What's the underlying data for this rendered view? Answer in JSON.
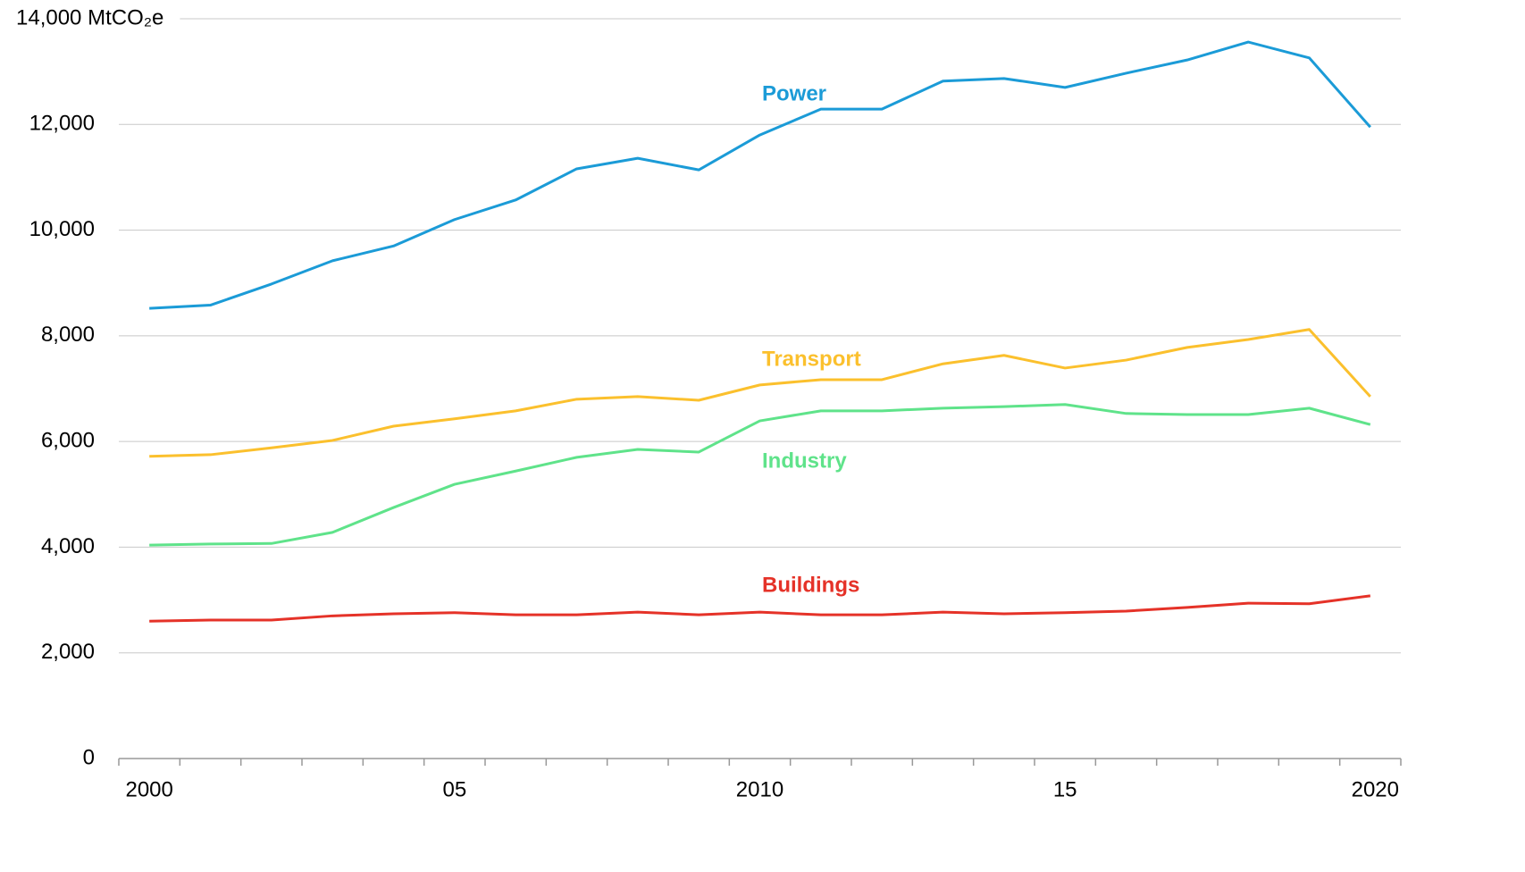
{
  "chart_data": {
    "type": "line",
    "x": [
      2000,
      2001,
      2002,
      2003,
      2004,
      2005,
      2006,
      2007,
      2008,
      2009,
      2010,
      2011,
      2012,
      2013,
      2014,
      2015,
      2016,
      2017,
      2018,
      2019,
      2020
    ],
    "series": [
      {
        "name": "Power",
        "color": "#1b9bd7",
        "values": [
          8520,
          8580,
          8980,
          9420,
          9700,
          10200,
          10570,
          11160,
          11360,
          11140,
          11800,
          12290,
          12290,
          12820,
          12870,
          12700,
          12970,
          13220,
          13560,
          13260,
          11950
        ]
      },
      {
        "name": "Transport",
        "color": "#fbc02d",
        "values": [
          5720,
          5750,
          5880,
          6020,
          6290,
          6430,
          6580,
          6800,
          6850,
          6780,
          7070,
          7170,
          7170,
          7470,
          7630,
          7390,
          7540,
          7780,
          7930,
          8120,
          6850
        ]
      },
      {
        "name": "Industry",
        "color": "#5fe38a",
        "values": [
          4040,
          4060,
          4070,
          4280,
          4750,
          5190,
          5440,
          5700,
          5850,
          5800,
          6390,
          6580,
          6580,
          6630,
          6660,
          6700,
          6530,
          6510,
          6510,
          6630,
          6320
        ]
      },
      {
        "name": "Buildings",
        "color": "#e53228",
        "values": [
          2600,
          2620,
          2620,
          2700,
          2740,
          2760,
          2720,
          2720,
          2770,
          2720,
          2770,
          2720,
          2720,
          2770,
          2740,
          2760,
          2790,
          2860,
          2940,
          2930,
          3080
        ]
      }
    ],
    "xlim": [
      1999.5,
      2020.5
    ],
    "xticks": [
      2000,
      {
        "value": 2005,
        "label": "05"
      },
      2010,
      {
        "value": 2015,
        "label": "15"
      },
      2020
    ],
    "minor_xticks": [
      1999.5,
      2000.5,
      2001.5,
      2002.5,
      2003.5,
      2004.5,
      2005.5,
      2006.5,
      2007.5,
      2008.5,
      2009.5,
      2010.5,
      2011.5,
      2012.5,
      2013.5,
      2014.5,
      2015.5,
      2016.5,
      2017.5,
      2018.5,
      2019.5,
      2020.5
    ],
    "ylim": [
      0,
      14000
    ],
    "yticks": [
      0,
      {
        "value": 2000,
        "label": "2,000"
      },
      {
        "value": 4000,
        "label": "4,000"
      },
      {
        "value": 6000,
        "label": "6,000"
      },
      {
        "value": 8000,
        "label": "8,000"
      },
      {
        "value": 10000,
        "label": "10,000"
      },
      {
        "value": 12000,
        "label": "12,000"
      },
      {
        "value": 14000,
        "label": "14,000 MtCO₂e"
      }
    ],
    "grid": true
  }
}
